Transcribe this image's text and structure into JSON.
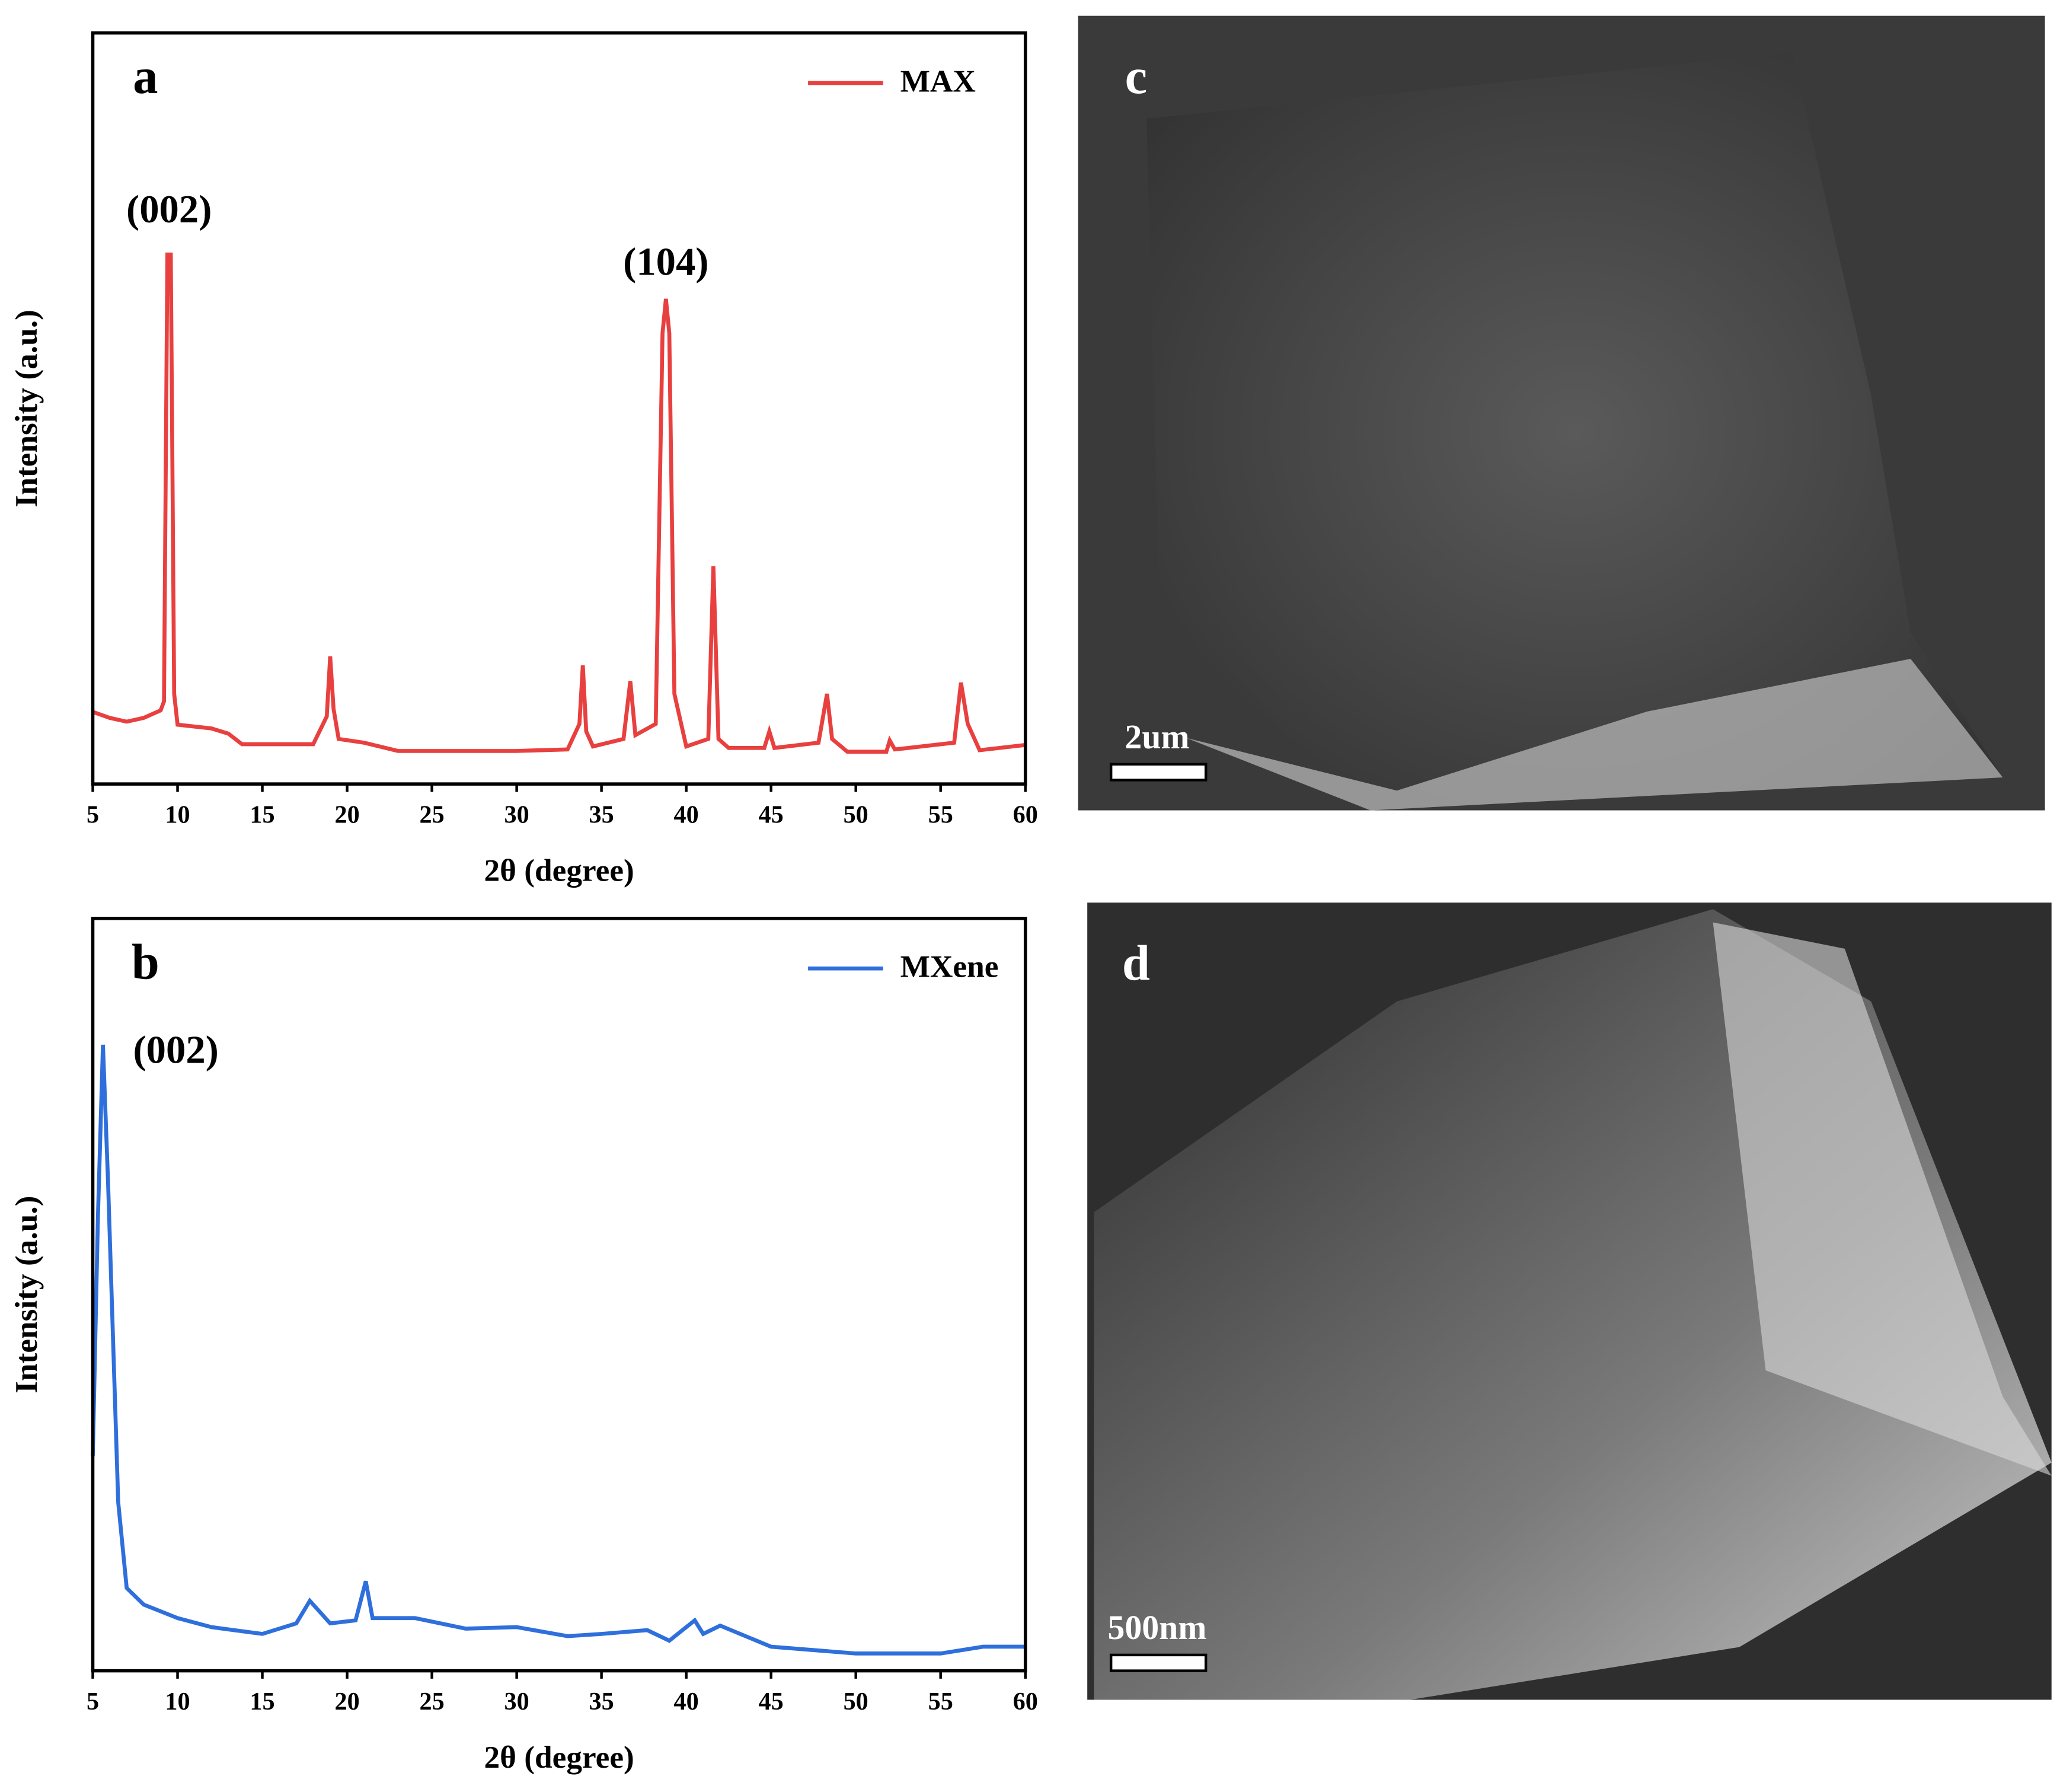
{
  "chart_data": [
    {
      "type": "line",
      "panel_label": "a",
      "xlabel": "2θ (degree)",
      "ylabel": "Intensity (a.u.)",
      "xlim": [
        5,
        60
      ],
      "ylim": [
        0,
        100
      ],
      "xticks": [
        5,
        10,
        15,
        20,
        25,
        30,
        35,
        40,
        45,
        50,
        55,
        60
      ],
      "legend": "upper right",
      "annotations": [
        {
          "text": "(002)",
          "x": 9.5,
          "y": 76
        },
        {
          "text": "(104)",
          "x": 38.8,
          "y": 69
        }
      ],
      "x": [
        5,
        6,
        7,
        8,
        9,
        9.2,
        9.4,
        9.6,
        9.8,
        10,
        12,
        13,
        13.8,
        18,
        18.8,
        19,
        19.2,
        19.5,
        21,
        23,
        30,
        33,
        33.7,
        33.9,
        34.1,
        34.5,
        36.3,
        36.7,
        37,
        38.2,
        38.6,
        38.8,
        39,
        39.3,
        40,
        41.3,
        41.6,
        41.9,
        42.5,
        44.6,
        44.9,
        45.2,
        47.8,
        48.3,
        48.6,
        49.5,
        51.8,
        52,
        52.3,
        55.8,
        56.2,
        56.6,
        57.3,
        60
      ],
      "series": [
        {
          "name": "MAX",
          "color": "#e8403f",
          "values": [
            9.6,
            8.8,
            8.3,
            8.8,
            9.8,
            11,
            70.5,
            70.5,
            12,
            7.9,
            7.4,
            6.7,
            5.3,
            5.3,
            9,
            17,
            10,
            6,
            5.5,
            4.4,
            4.4,
            4.6,
            8,
            15.8,
            7,
            5,
            6,
            13.7,
            6.5,
            8,
            60,
            64.6,
            60,
            12,
            5,
            6,
            29,
            6,
            4.8,
            4.8,
            7,
            4.8,
            5.5,
            12,
            6,
            4.3,
            4.3,
            5.8,
            4.6,
            5.5,
            13.5,
            8,
            4.5,
            5.2
          ]
        }
      ]
    },
    {
      "type": "line",
      "panel_label": "b",
      "xlabel": "2θ (degree)",
      "ylabel": "Intensity (a.u.)",
      "xlim": [
        5,
        60
      ],
      "ylim": [
        0,
        100
      ],
      "xticks": [
        5,
        10,
        15,
        20,
        25,
        30,
        35,
        40,
        45,
        50,
        55,
        60
      ],
      "legend": "upper right",
      "annotations": [
        {
          "text": "(002)",
          "x": 9.9,
          "y": 82
        }
      ],
      "x": [
        5,
        5.3,
        5.6,
        5.9,
        6.5,
        7,
        8,
        10,
        12,
        15,
        17,
        17.8,
        19,
        20.5,
        21.1,
        21.5,
        24,
        27,
        30,
        33,
        35,
        37.7,
        39,
        40.5,
        41,
        42,
        45,
        50,
        55,
        57.5,
        60
      ],
      "series": [
        {
          "name": "MXene",
          "color": "#2f6fdc",
          "values": [
            28.5,
            60,
            83.2,
            65,
            22.4,
            11,
            8.8,
            7,
            5.8,
            4.9,
            6.3,
            9.3,
            6.3,
            6.7,
            11.9,
            7,
            7,
            5.6,
            5.8,
            4.6,
            4.9,
            5.4,
            4,
            6.7,
            4.9,
            6,
            3.2,
            2.3,
            2.3,
            3.2,
            3.2
          ]
        }
      ]
    }
  ],
  "images": [
    {
      "panel_label": "c",
      "scale_bar": "2um"
    },
    {
      "panel_label": "d",
      "scale_bar": "500nm"
    }
  ]
}
